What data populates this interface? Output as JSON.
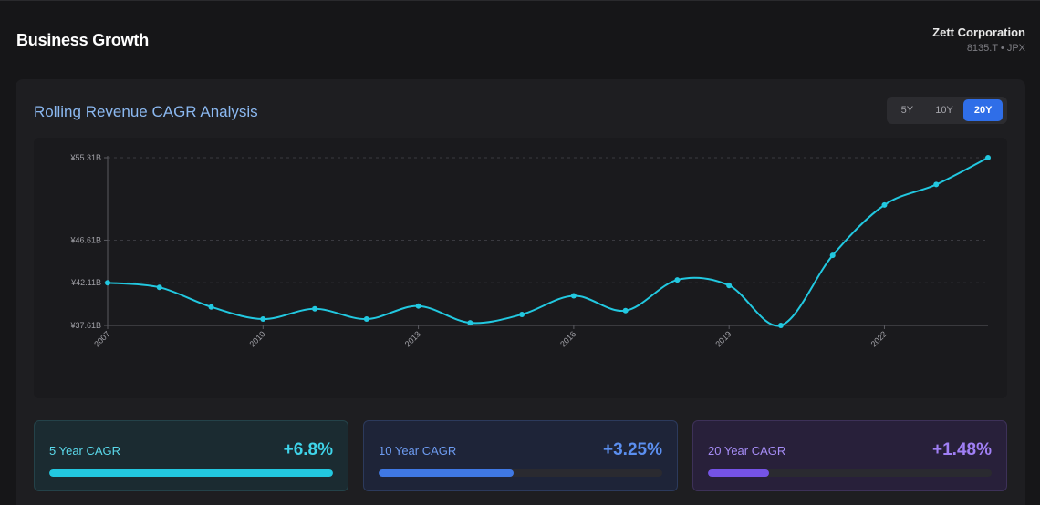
{
  "header": {
    "title": "Business Growth",
    "company_name": "Zett Corporation",
    "ticker": "8135.T • JPX"
  },
  "panel": {
    "title": "Rolling Revenue CAGR Analysis",
    "ranges": [
      "5Y",
      "10Y",
      "20Y"
    ],
    "active_range": "20Y"
  },
  "colors": {
    "line": "#22c8e0",
    "grid": "#3a3a40",
    "axis": "#5a5a60"
  },
  "chart_data": {
    "type": "line",
    "title": "Rolling Revenue CAGR Analysis",
    "x": [
      2007,
      2008,
      2009,
      2010,
      2011,
      2012,
      2013,
      2014,
      2015,
      2016,
      2017,
      2018,
      2019,
      2020,
      2021,
      2022,
      2023,
      2024
    ],
    "values": [
      42.11,
      41.63,
      39.56,
      38.28,
      39.36,
      38.28,
      39.66,
      37.89,
      38.77,
      40.74,
      39.17,
      42.41,
      41.82,
      37.61,
      45.0,
      50.32,
      52.48,
      55.31
    ],
    "ylim": [
      37.61,
      55.31
    ],
    "y_ticks": [
      37.61,
      42.11,
      46.61,
      55.31
    ],
    "y_tick_labels": [
      "¥37.61B",
      "¥42.11B",
      "¥46.61B",
      "¥55.31B"
    ],
    "x_ticks": [
      2007,
      2010,
      2013,
      2016,
      2019,
      2022
    ],
    "x_tick_labels": [
      "2007",
      "2010",
      "2013",
      "2016",
      "2019",
      "2022"
    ],
    "unit": "¥ billions",
    "grid": true
  },
  "cagr_cards": [
    {
      "label": "5 Year CAGR",
      "value": "+6.8%",
      "fill_fraction": 1.0
    },
    {
      "label": "10 Year CAGR",
      "value": "+3.25%",
      "fill_fraction": 0.476
    },
    {
      "label": "20 Year CAGR",
      "value": "+1.48%",
      "fill_fraction": 0.216
    }
  ]
}
